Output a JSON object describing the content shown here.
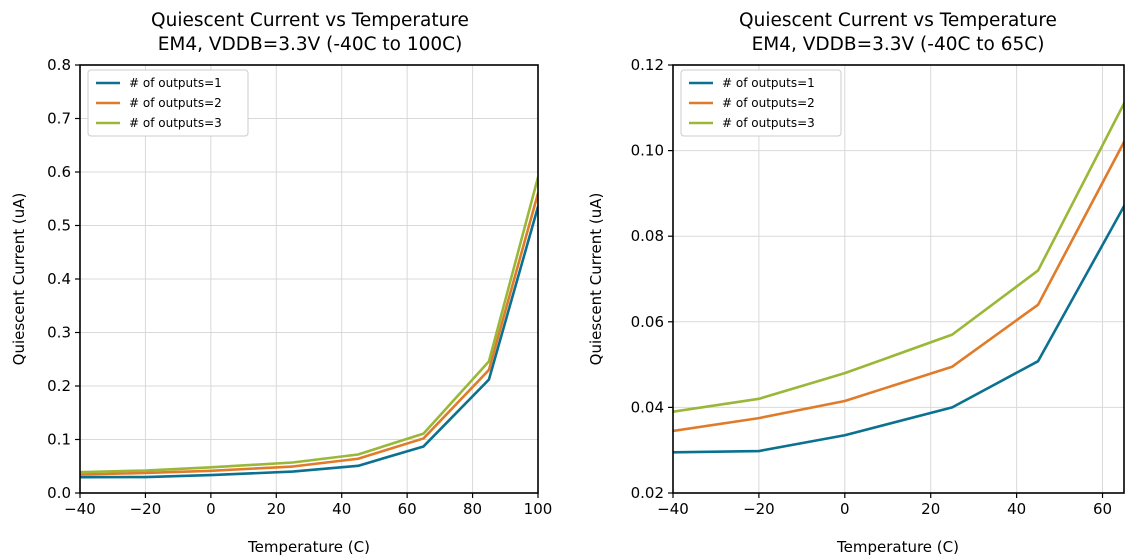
{
  "chart_data": [
    {
      "type": "line",
      "title": "Quiescent Current vs Temperature",
      "subtitle": "EM4, VDDB=3.3V (-40C to 100C)",
      "xlabel": "Temperature (C)",
      "ylabel": "Quiescent Current (uA)",
      "xlim": [
        -40,
        100
      ],
      "ylim": [
        0,
        0.8
      ],
      "xticks": [
        -40,
        -20,
        0,
        20,
        40,
        60,
        80,
        100
      ],
      "yticks": [
        0.0,
        0.1,
        0.2,
        0.3,
        0.4,
        0.5,
        0.6,
        0.7,
        0.8
      ],
      "xtick_labels": [
        "−40",
        "−20",
        "0",
        "20",
        "40",
        "60",
        "80",
        "100"
      ],
      "ytick_labels": [
        "0.0",
        "0.1",
        "0.2",
        "0.3",
        "0.4",
        "0.5",
        "0.6",
        "0.7",
        "0.8"
      ],
      "grid": true,
      "legend": "top-left",
      "x": [
        -40,
        -20,
        0,
        25,
        45,
        65,
        85,
        100
      ],
      "series": [
        {
          "name": "# of outputs=1",
          "color": "#0b7190",
          "values": [
            0.0295,
            0.0298,
            0.0335,
            0.04,
            0.0508,
            0.087,
            0.212,
            0.535
          ]
        },
        {
          "name": "# of outputs=2",
          "color": "#e07b2a",
          "values": [
            0.0345,
            0.0375,
            0.0415,
            0.0495,
            0.064,
            0.102,
            0.23,
            0.56
          ]
        },
        {
          "name": "# of outputs=3",
          "color": "#9ab838",
          "values": [
            0.039,
            0.042,
            0.048,
            0.057,
            0.072,
            0.111,
            0.246,
            0.59
          ]
        }
      ]
    },
    {
      "type": "line",
      "title": "Quiescent Current vs Temperature",
      "subtitle": "EM4, VDDB=3.3V (-40C to 65C)",
      "xlabel": "Temperature (C)",
      "ylabel": "Quiescent Current (uA)",
      "xlim": [
        -40,
        65
      ],
      "ylim": [
        0.02,
        0.12
      ],
      "xticks": [
        -40,
        -20,
        0,
        20,
        40,
        60
      ],
      "yticks": [
        0.02,
        0.04,
        0.06,
        0.08,
        0.1,
        0.12
      ],
      "xtick_labels": [
        "−40",
        "−20",
        "0",
        "20",
        "40",
        "60"
      ],
      "ytick_labels": [
        "0.02",
        "0.04",
        "0.06",
        "0.08",
        "0.10",
        "0.12"
      ],
      "grid": true,
      "legend": "top-left",
      "x": [
        -40,
        -20,
        0,
        25,
        45,
        65
      ],
      "series": [
        {
          "name": "# of outputs=1",
          "color": "#0b7190",
          "values": [
            0.0295,
            0.0298,
            0.0335,
            0.04,
            0.0508,
            0.087
          ]
        },
        {
          "name": "# of outputs=2",
          "color": "#e07b2a",
          "values": [
            0.0345,
            0.0375,
            0.0415,
            0.0495,
            0.064,
            0.102
          ]
        },
        {
          "name": "# of outputs=3",
          "color": "#9ab838",
          "values": [
            0.039,
            0.042,
            0.048,
            0.057,
            0.072,
            0.111
          ]
        }
      ]
    }
  ]
}
